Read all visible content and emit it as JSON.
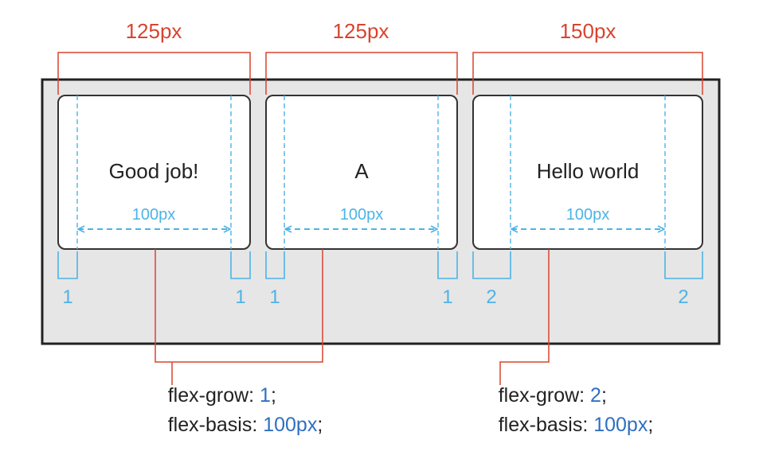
{
  "colors": {
    "container_fill": "#e6e6e6",
    "container_border": "#222222",
    "box_fill": "#ffffff",
    "box_border": "#333333",
    "red_annotation": "#d9432f",
    "blue_annotation": "#4db3e6",
    "code_value": "#2f6fc2"
  },
  "widths": [
    "125px",
    "125px",
    "150px"
  ],
  "items": [
    {
      "text": "Good job!",
      "basis_label": "100px",
      "left_grow": "1",
      "right_grow": "1"
    },
    {
      "text": "A",
      "basis_label": "100px",
      "left_grow": "1",
      "right_grow": "1"
    },
    {
      "text": "Hello world",
      "basis_label": "100px",
      "left_grow": "2",
      "right_grow": "2"
    }
  ],
  "rules": [
    {
      "grow_prop": "flex-grow: ",
      "grow_value": "1",
      "grow_end": ";",
      "basis_prop": "flex-basis: ",
      "basis_value": "100px",
      "basis_end": ";"
    },
    {
      "grow_prop": "flex-grow: ",
      "grow_value": "2",
      "grow_end": ";",
      "basis_prop": "flex-basis: ",
      "basis_value": "100px",
      "basis_end": ";"
    }
  ]
}
